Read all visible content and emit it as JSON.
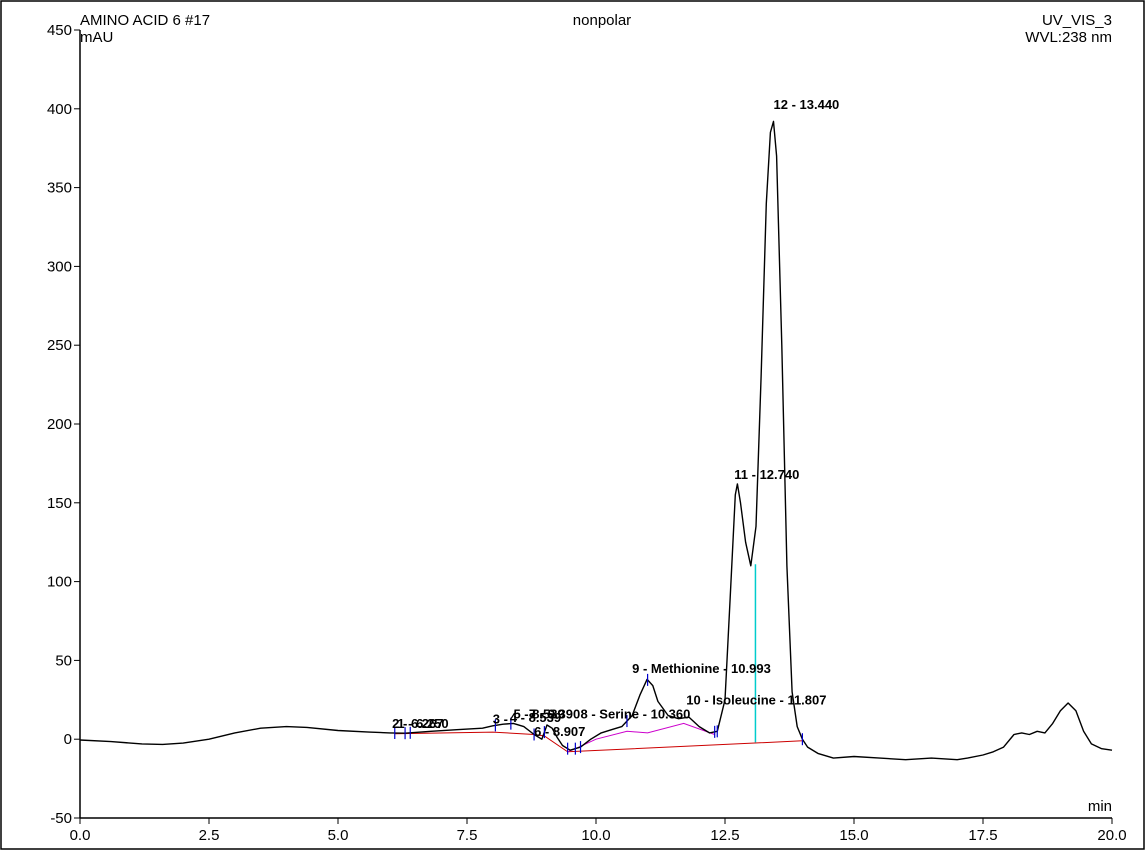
{
  "header": {
    "sample": "AMINO ACID 6 #17",
    "method": "nonpolar",
    "channel": "UV_VIS_3",
    "wavelength": "WVL:238 nm",
    "y_unit": "mAU",
    "x_unit": "min"
  },
  "chart_data": {
    "type": "line",
    "title": "",
    "xlabel": "min",
    "ylabel": "mAU",
    "xlim": [
      0,
      20
    ],
    "ylim": [
      -50,
      450
    ],
    "grid": false,
    "x_ticks": [
      "0.0",
      "2.5",
      "5.0",
      "7.5",
      "10.0",
      "12.5",
      "15.0",
      "17.5",
      "20.0"
    ],
    "x_tick_values": [
      0,
      2.5,
      5,
      7.5,
      10,
      12.5,
      15,
      17.5,
      20
    ],
    "y_ticks": [
      "-50",
      "0",
      "50",
      "100",
      "150",
      "200",
      "250",
      "300",
      "350",
      "400",
      "450"
    ],
    "y_tick_values": [
      -50,
      0,
      50,
      100,
      150,
      200,
      250,
      300,
      350,
      400,
      450
    ],
    "series": [
      {
        "color": "#000000",
        "x": [
          0,
          0.6,
          1.2,
          1.6,
          2.0,
          2.5,
          3.0,
          3.5,
          4.0,
          4.4,
          5.0,
          5.6,
          6.0,
          6.3,
          6.8,
          7.3,
          7.8,
          8.0,
          8.2,
          8.4,
          8.6,
          8.8,
          8.95,
          9.05,
          9.15,
          9.25,
          9.35,
          9.5,
          9.7,
          9.9,
          10.1,
          10.3,
          10.5,
          10.7,
          10.85,
          10.99,
          11.1,
          11.2,
          11.4,
          11.6,
          11.8,
          12.0,
          12.2,
          12.35,
          12.5,
          12.6,
          12.7,
          12.74,
          12.8,
          12.9,
          13.0,
          13.1,
          13.2,
          13.3,
          13.38,
          13.44,
          13.5,
          13.6,
          13.7,
          13.8,
          13.9,
          14.0,
          14.1,
          14.3,
          14.6,
          15.0,
          15.5,
          16.0,
          16.5,
          17.0,
          17.2,
          17.5,
          17.7,
          17.9,
          18.1,
          18.25,
          18.4,
          18.55,
          18.7,
          18.85,
          19.0,
          19.15,
          19.3,
          19.45,
          19.6,
          19.8,
          20.0
        ],
        "y": [
          -0.5,
          -1.5,
          -3,
          -3.3,
          -2.5,
          0,
          4,
          7,
          8,
          7.5,
          5.5,
          4.5,
          4,
          3.8,
          5,
          6,
          7,
          8.5,
          9.5,
          10,
          8,
          3,
          0,
          9,
          7,
          1,
          -4,
          -7,
          -5,
          0,
          4,
          6,
          8,
          15,
          28,
          38,
          34,
          24,
          15,
          13,
          14,
          8,
          4,
          5,
          25,
          90,
          155,
          162,
          150,
          125,
          110,
          135,
          230,
          340,
          385,
          392,
          370,
          250,
          110,
          30,
          8,
          0,
          -5,
          -9,
          -12,
          -11,
          -12,
          -13,
          -12,
          -13,
          -12,
          -10,
          -8,
          -5,
          3,
          4,
          3,
          5,
          4,
          10,
          18,
          23,
          18,
          5,
          -3,
          -6,
          -7
        ]
      }
    ],
    "baselines": [
      {
        "color": "#cc0000",
        "x": [
          6.1,
          8.0,
          8.8,
          9.0,
          9.45,
          14.0
        ],
        "y": [
          3.5,
          4.5,
          3,
          2,
          -8,
          -1
        ]
      },
      {
        "color": "#cc00cc",
        "x": [
          9.45,
          9.6,
          10.0,
          10.6,
          11.0,
          11.7,
          12.3
        ],
        "y": [
          -8,
          -6,
          0,
          5,
          4,
          10,
          3
        ]
      }
    ],
    "markers": [
      {
        "color": "#0000cc",
        "x": [
          6.1,
          6.3,
          6.4,
          8.05,
          8.35,
          8.8,
          9.0,
          9.45,
          9.6,
          9.7,
          10.6,
          11.0,
          12.3,
          12.35,
          14.0
        ]
      }
    ],
    "dropline": {
      "color": "#00cccc",
      "x": 13.09,
      "y_top": 111,
      "y_bottom": -2
    },
    "peak_labels": [
      {
        "text": "12 - 13.440",
        "x": 13.44,
        "y": 400
      },
      {
        "text": "11 - 12.740",
        "x": 12.68,
        "y": 165
      },
      {
        "text": "9 - Methionine - 10.993",
        "x": 10.7,
        "y": 42
      },
      {
        "text": "10 - Isoleucine - 11.807",
        "x": 11.75,
        "y": 22
      },
      {
        "text": "8 - Serine - 10.360",
        "x": 9.7,
        "y": 13
      },
      {
        "text": "2 - 6.267",
        "x": 6.05,
        "y": 7
      },
      {
        "text": "1 - 6.250",
        "x": 6.15,
        "y": 7
      },
      {
        "text": "3 -",
        "x": 8.0,
        "y": 10
      },
      {
        "text": "4 - 8.539",
        "x": 8.33,
        "y": 11
      },
      {
        "text": "5 - 8.539",
        "x": 8.4,
        "y": 13
      },
      {
        "text": "7 - 9.390",
        "x": 8.7,
        "y": 13
      },
      {
        "text": "6 - 8.907",
        "x": 8.8,
        "y": 2
      }
    ]
  }
}
